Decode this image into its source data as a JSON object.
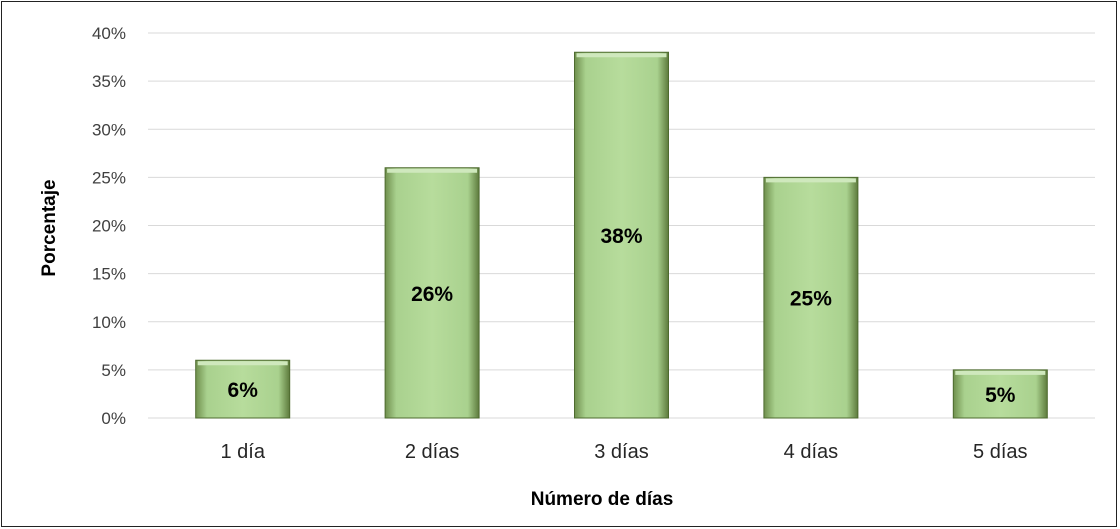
{
  "chart_data": {
    "type": "bar",
    "categories": [
      "1 día",
      "2 días",
      "3 días",
      "4 días",
      "5 días"
    ],
    "values": [
      6,
      26,
      38,
      25,
      5
    ],
    "data_labels": [
      "6%",
      "26%",
      "38%",
      "25%",
      "5%"
    ],
    "xlabel": "Número de días",
    "ylabel": "Porcentaje",
    "ylim": [
      0,
      40
    ],
    "y_ticks": [
      "0%",
      "5%",
      "10%",
      "15%",
      "20%",
      "25%",
      "30%",
      "35%",
      "40%"
    ],
    "grid": true,
    "legend": "none",
    "colors": {
      "bar_fill": "#a9d18e",
      "bar_edge": "#4e6b2f",
      "grid": "#d9d9d9"
    }
  }
}
